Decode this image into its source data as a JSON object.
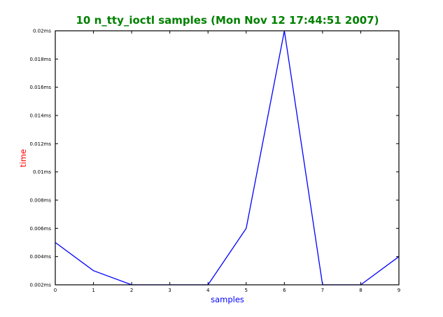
{
  "chart_data": {
    "type": "line",
    "title": "10 n_tty_ioctl samples (Mon Nov 12 17:44:51 2007)",
    "xlabel": "samples",
    "ylabel": "time",
    "x": [
      0,
      1,
      2,
      3,
      4,
      5,
      6,
      7,
      8,
      9
    ],
    "series": [
      {
        "values": [
          0.005,
          0.003,
          0.002,
          0.002,
          0.002,
          0.006,
          0.02,
          0.002,
          0.002,
          0.004
        ]
      }
    ],
    "xlim": [
      0,
      9
    ],
    "ylim": [
      0.002,
      0.02
    ],
    "x_ticks": [
      "0",
      "1",
      "2",
      "3",
      "4",
      "5",
      "6",
      "7",
      "8",
      "9"
    ],
    "y_ticks": [
      "0.002ms",
      "0.004ms",
      "0.006ms",
      "0.008ms",
      "0.01ms",
      "0.012ms",
      "0.014ms",
      "0.016ms",
      "0.018ms",
      "0.02ms"
    ],
    "y_tick_values": [
      0.002,
      0.004,
      0.006,
      0.008,
      0.01,
      0.012,
      0.014,
      0.016,
      0.018,
      0.02
    ],
    "grid": false,
    "legend": "none",
    "colors": {
      "title": "#008000",
      "xlabel": "#0000ff",
      "ylabel": "#ff0000",
      "line": "#0000ff",
      "axes": "#000000"
    }
  }
}
